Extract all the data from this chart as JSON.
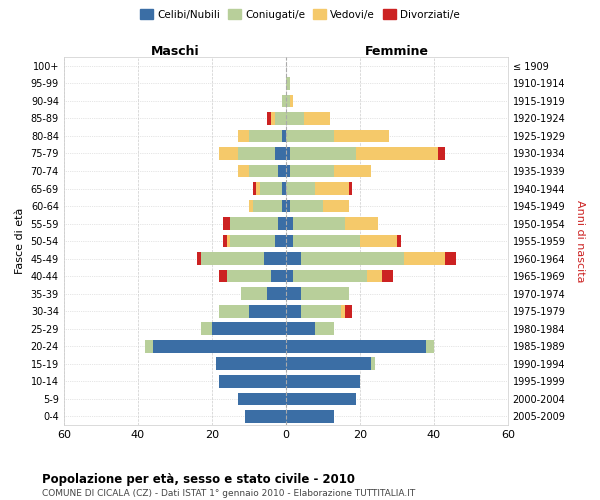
{
  "age_groups": [
    "0-4",
    "5-9",
    "10-14",
    "15-19",
    "20-24",
    "25-29",
    "30-34",
    "35-39",
    "40-44",
    "45-49",
    "50-54",
    "55-59",
    "60-64",
    "65-69",
    "70-74",
    "75-79",
    "80-84",
    "85-89",
    "90-94",
    "95-99",
    "100+"
  ],
  "birth_years": [
    "2005-2009",
    "2000-2004",
    "1995-1999",
    "1990-1994",
    "1985-1989",
    "1980-1984",
    "1975-1979",
    "1970-1974",
    "1965-1969",
    "1960-1964",
    "1955-1959",
    "1950-1954",
    "1945-1949",
    "1940-1944",
    "1935-1939",
    "1930-1934",
    "1925-1929",
    "1920-1924",
    "1915-1919",
    "1910-1914",
    "≤ 1909"
  ],
  "males_celibi": [
    11,
    13,
    18,
    19,
    36,
    20,
    10,
    5,
    4,
    6,
    3,
    2,
    1,
    1,
    2,
    3,
    1,
    0,
    0,
    0,
    0
  ],
  "males_coniugati": [
    0,
    0,
    0,
    0,
    2,
    3,
    8,
    7,
    12,
    17,
    12,
    13,
    8,
    6,
    8,
    10,
    9,
    3,
    1,
    0,
    0
  ],
  "males_vedovi": [
    0,
    0,
    0,
    0,
    0,
    0,
    0,
    0,
    0,
    0,
    1,
    0,
    1,
    1,
    3,
    5,
    3,
    1,
    0,
    0,
    0
  ],
  "males_divorziati": [
    0,
    0,
    0,
    0,
    0,
    0,
    0,
    0,
    2,
    1,
    1,
    2,
    0,
    1,
    0,
    0,
    0,
    1,
    0,
    0,
    0
  ],
  "females_nubili": [
    13,
    19,
    20,
    23,
    38,
    8,
    4,
    4,
    2,
    4,
    2,
    2,
    1,
    0,
    1,
    1,
    0,
    0,
    0,
    0,
    0
  ],
  "females_coniugate": [
    0,
    0,
    0,
    1,
    2,
    5,
    11,
    13,
    20,
    28,
    18,
    14,
    9,
    8,
    12,
    18,
    13,
    5,
    1,
    1,
    0
  ],
  "females_vedove": [
    0,
    0,
    0,
    0,
    0,
    0,
    1,
    0,
    4,
    11,
    10,
    9,
    7,
    9,
    10,
    22,
    15,
    7,
    1,
    0,
    0
  ],
  "females_divorziate": [
    0,
    0,
    0,
    0,
    0,
    0,
    2,
    0,
    3,
    3,
    1,
    0,
    0,
    1,
    0,
    2,
    0,
    0,
    0,
    0,
    0
  ],
  "color_celibi": "#3B6EA5",
  "color_coniugati": "#B8CF9A",
  "color_vedovi": "#F5C96A",
  "color_divorziati": "#CC2222",
  "label_maschi": "Maschi",
  "label_femmine": "Femmine",
  "label_fascia": "Fasce di età",
  "label_anni": "Anni di nascita",
  "legend_labels": [
    "Celibi/Nubili",
    "Coniugati/e",
    "Vedovi/e",
    "Divorziati/e"
  ],
  "title_main": "Popolazione per età, sesso e stato civile - 2010",
  "title_sub": "COMUNE DI CICALA (CZ) - Dati ISTAT 1° gennaio 2010 - Elaborazione TUTTITALIA.IT",
  "xlim": 60,
  "bg": "#FFFFFF",
  "grid_color": "#CCCCCC"
}
